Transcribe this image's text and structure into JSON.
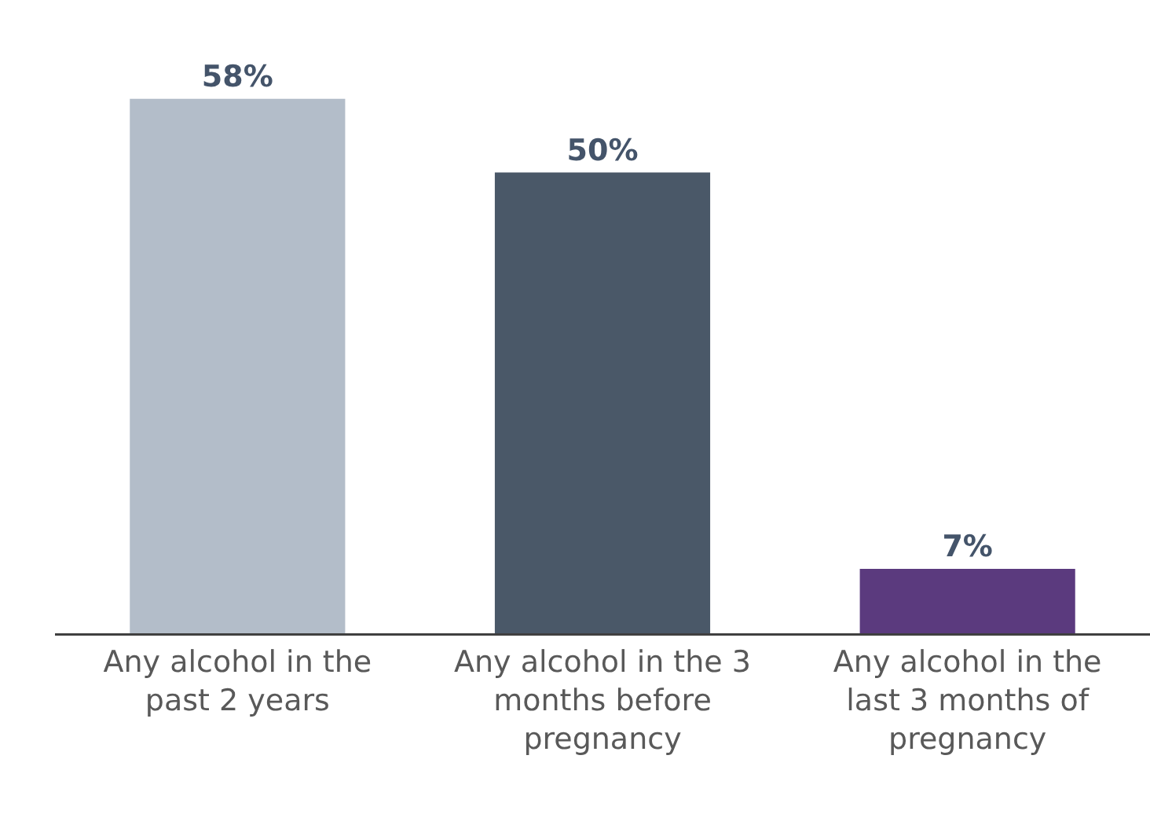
{
  "chart_data": {
    "type": "bar",
    "categories": [
      "Any alcohol in the past 2 years",
      "Any alcohol in the 3 months before pregnancy",
      "Any alcohol in the last 3 months of pregnancy"
    ],
    "values": [
      58,
      50,
      7
    ],
    "colors": [
      "#b3bdc9",
      "#4a5868",
      "#5b3a7e"
    ],
    "value_labels": [
      "58%",
      "50%",
      "7%"
    ]
  }
}
